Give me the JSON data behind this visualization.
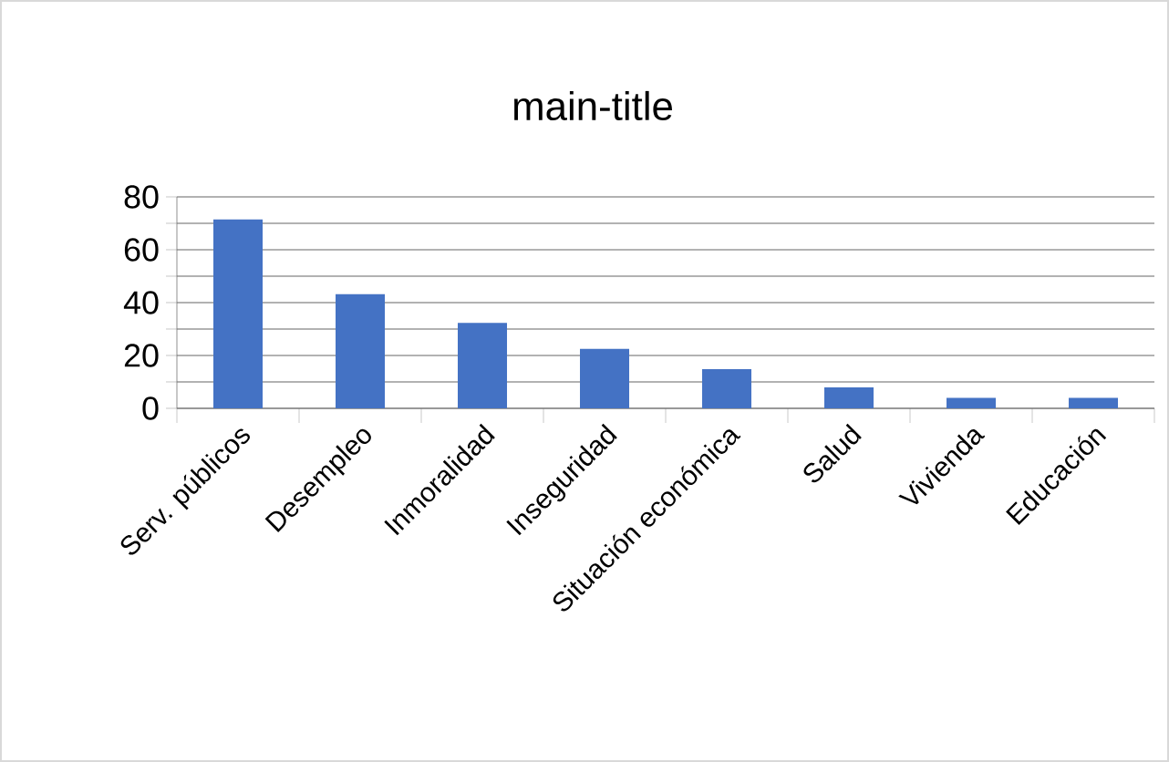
{
  "chart_data": {
    "type": "bar",
    "title": "main-title",
    "categories": [
      "Serv. públicos",
      "Desempleo",
      "Inmoralidad",
      "Inseguridad",
      "Situación económica",
      "Salud",
      "Vivienda",
      "Educación"
    ],
    "values": [
      71.5,
      43.2,
      32.3,
      22.5,
      14.8,
      7.9,
      4,
      4
    ],
    "color": "#4472c4",
    "ylim": [
      0,
      80
    ],
    "yticks": [
      0,
      {
        "value": 10,
        "label": null
      },
      20,
      {
        "value": 30,
        "label": null
      },
      40,
      {
        "value": 50,
        "label": null
      },
      60,
      {
        "value": 70,
        "label": null
      },
      80
    ],
    "grid": "y"
  }
}
